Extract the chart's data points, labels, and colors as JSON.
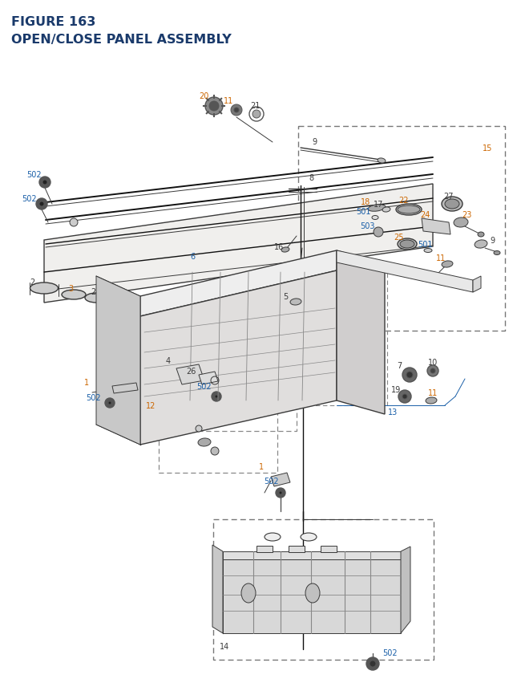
{
  "title_line1": "FIGURE 163",
  "title_line2": "OPEN/CLOSE PANEL ASSEMBLY",
  "title_color": "#1a3a6b",
  "title_fontsize": 11.5,
  "bg_color": "#ffffff",
  "figsize": [
    6.4,
    8.62
  ],
  "dpi": 100,
  "line_color": "#3a3a3a",
  "label_black": "#3a3a3a",
  "label_orange": "#cc6600",
  "label_blue": "#1a5fa8"
}
